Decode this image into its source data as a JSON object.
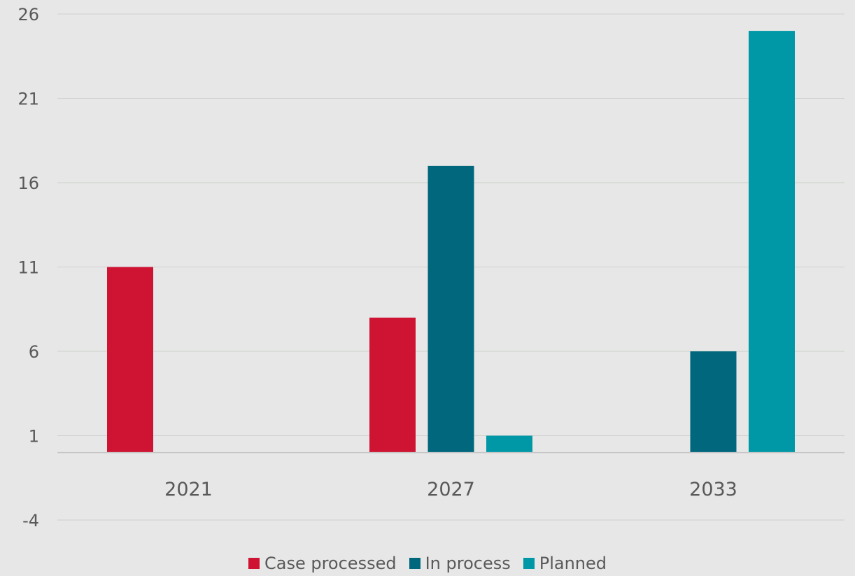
{
  "chart_data": {
    "type": "bar",
    "title": "",
    "xlabel": "",
    "ylabel": "",
    "categories": [
      "2021",
      "2027",
      "2033"
    ],
    "series": [
      {
        "name": "Case processed",
        "color": "#cf1433",
        "values": [
          11,
          8,
          null
        ]
      },
      {
        "name": "In process",
        "color": "#00677d",
        "values": [
          null,
          17,
          6
        ]
      },
      {
        "name": "Planned",
        "color": "#0097a7",
        "values": [
          null,
          1,
          25
        ]
      }
    ],
    "yticks": [
      -4,
      1,
      6,
      11,
      16,
      21,
      26
    ],
    "ylim": [
      -4,
      26
    ],
    "baseline": 0,
    "grid": true,
    "legend_position": "bottom"
  }
}
